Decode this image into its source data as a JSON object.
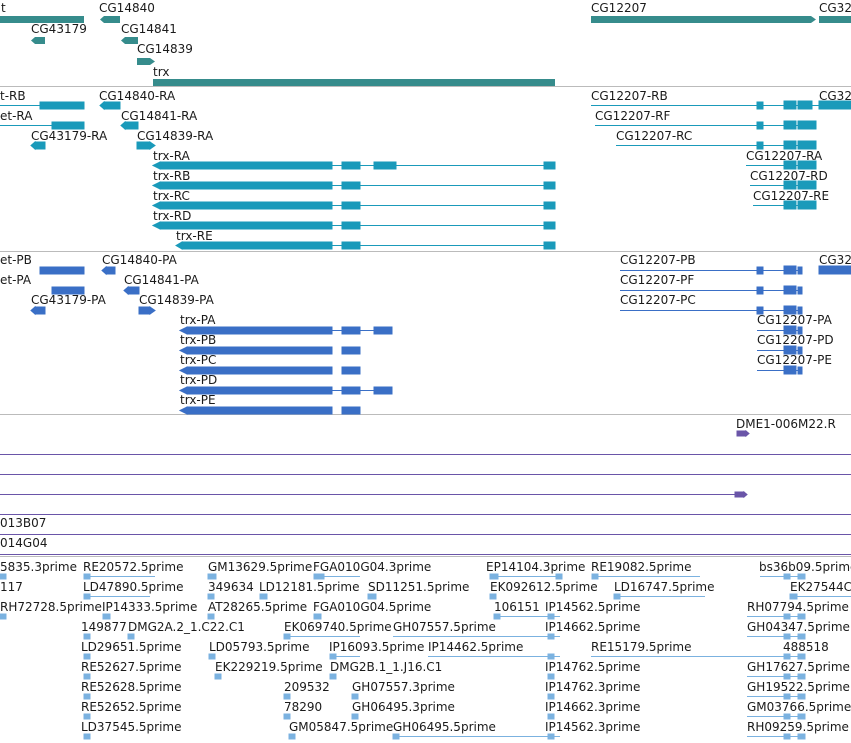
{
  "palette": {
    "gene": "#368c8c",
    "transcript": "#1a9aba",
    "protein": "#3a6fc6",
    "clone": "#6a55a8",
    "est": "#7bb2e0",
    "separator": "#bbbbbb",
    "text": "#1a1a1a"
  },
  "panels": {
    "genes": {
      "features": [
        {
          "label": "t"
        },
        {
          "label": "CG14840"
        },
        {
          "label": "CG12207"
        },
        {
          "label": "CG32"
        },
        {
          "label": "CG43179"
        },
        {
          "label": "CG14841"
        },
        {
          "label": "CG14839"
        },
        {
          "label": "trx"
        }
      ]
    },
    "transcripts": {
      "features": [
        {
          "label": "t-RB"
        },
        {
          "label": "CG14840-RA"
        },
        {
          "label": "CG12207-RB"
        },
        {
          "label": "CG32"
        },
        {
          "label": "et-RA"
        },
        {
          "label": "CG14841-RA"
        },
        {
          "label": "CG12207-RF"
        },
        {
          "label": "CG43179-RA"
        },
        {
          "label": "CG14839-RA"
        },
        {
          "label": "CG12207-RC"
        },
        {
          "label": "trx-RA"
        },
        {
          "label": "CG12207-RA"
        },
        {
          "label": "trx-RB"
        },
        {
          "label": "CG12207-RD"
        },
        {
          "label": "trx-RC"
        },
        {
          "label": "CG12207-RE"
        },
        {
          "label": "trx-RD"
        },
        {
          "label": "trx-RE"
        }
      ]
    },
    "proteins": {
      "features": [
        {
          "label": "et-PB"
        },
        {
          "label": "CG14840-PA"
        },
        {
          "label": "CG12207-PB"
        },
        {
          "label": "CG32"
        },
        {
          "label": "et-PA"
        },
        {
          "label": "CG14841-PA"
        },
        {
          "label": "CG12207-PF"
        },
        {
          "label": "CG43179-PA"
        },
        {
          "label": "CG14839-PA"
        },
        {
          "label": "CG12207-PC"
        },
        {
          "label": "trx-PA"
        },
        {
          "label": "CG12207-PA"
        },
        {
          "label": "trx-PB"
        },
        {
          "label": "CG12207-PD"
        },
        {
          "label": "trx-PC"
        },
        {
          "label": "CG12207-PE"
        },
        {
          "label": "trx-PD"
        },
        {
          "label": "trx-PE"
        }
      ]
    },
    "clones": {
      "features": [
        {
          "label": "DME1-006M22.R"
        },
        {
          "label": "013B07"
        },
        {
          "label": "014G04"
        }
      ]
    },
    "ests": {
      "features": [
        {
          "label": "5835.3prime"
        },
        {
          "label": "RE20572.5prime"
        },
        {
          "label": "GM13629.5prime"
        },
        {
          "label": "FGA010G04.3prime"
        },
        {
          "label": "EP14104.3prime"
        },
        {
          "label": "RE19082.5prime"
        },
        {
          "label": "bs36b09.5prime"
        },
        {
          "label": "117"
        },
        {
          "label": "LD47890.5prime"
        },
        {
          "label": "349634"
        },
        {
          "label": "LD12181.5prime"
        },
        {
          "label": "SD11251.5prime"
        },
        {
          "label": "EK092612.5prime"
        },
        {
          "label": "LD16747.5prime"
        },
        {
          "label": "EK27544C"
        },
        {
          "label": "RH72728.5prime"
        },
        {
          "label": "IP14333.5prime"
        },
        {
          "label": "AT28265.5prime"
        },
        {
          "label": "FGA010G04.5prime"
        },
        {
          "label": "106151"
        },
        {
          "label": "IP14562.5prime"
        },
        {
          "label": "RH07794.5prime"
        },
        {
          "label": "149877"
        },
        {
          "label": "DMG2A.2_1.C22.C1"
        },
        {
          "label": "EK069740.5prime"
        },
        {
          "label": "GH07557.5prime"
        },
        {
          "label": "IP14662.5prime"
        },
        {
          "label": "GH04347.5prime"
        },
        {
          "label": "LD29651.5prime"
        },
        {
          "label": "LD05793.5prime"
        },
        {
          "label": "IP16093.5prime"
        },
        {
          "label": "IP14462.5prime"
        },
        {
          "label": "RE15179.5prime"
        },
        {
          "label": "488518"
        },
        {
          "label": "RE52627.5prime"
        },
        {
          "label": "EK229219.5prime"
        },
        {
          "label": "DMG2B.1_1.J16.C1"
        },
        {
          "label": "IP14762.5prime"
        },
        {
          "label": "GH17627.5prime"
        },
        {
          "label": "RE52628.5prime"
        },
        {
          "label": "209532"
        },
        {
          "label": "GH07557.3prime"
        },
        {
          "label": "IP14762.3prime"
        },
        {
          "label": "GH19522.5prime"
        },
        {
          "label": "RE52652.5prime"
        },
        {
          "label": "78290"
        },
        {
          "label": "GH06495.3prime"
        },
        {
          "label": "IP14662.3prime"
        },
        {
          "label": "GM03766.5prime"
        },
        {
          "label": "LD37545.5prime"
        },
        {
          "label": "GM05847.5prime"
        },
        {
          "label": "GH06495.5prime"
        },
        {
          "label": "IP14562.3prime"
        },
        {
          "label": "RH09259.5prime"
        }
      ]
    }
  }
}
